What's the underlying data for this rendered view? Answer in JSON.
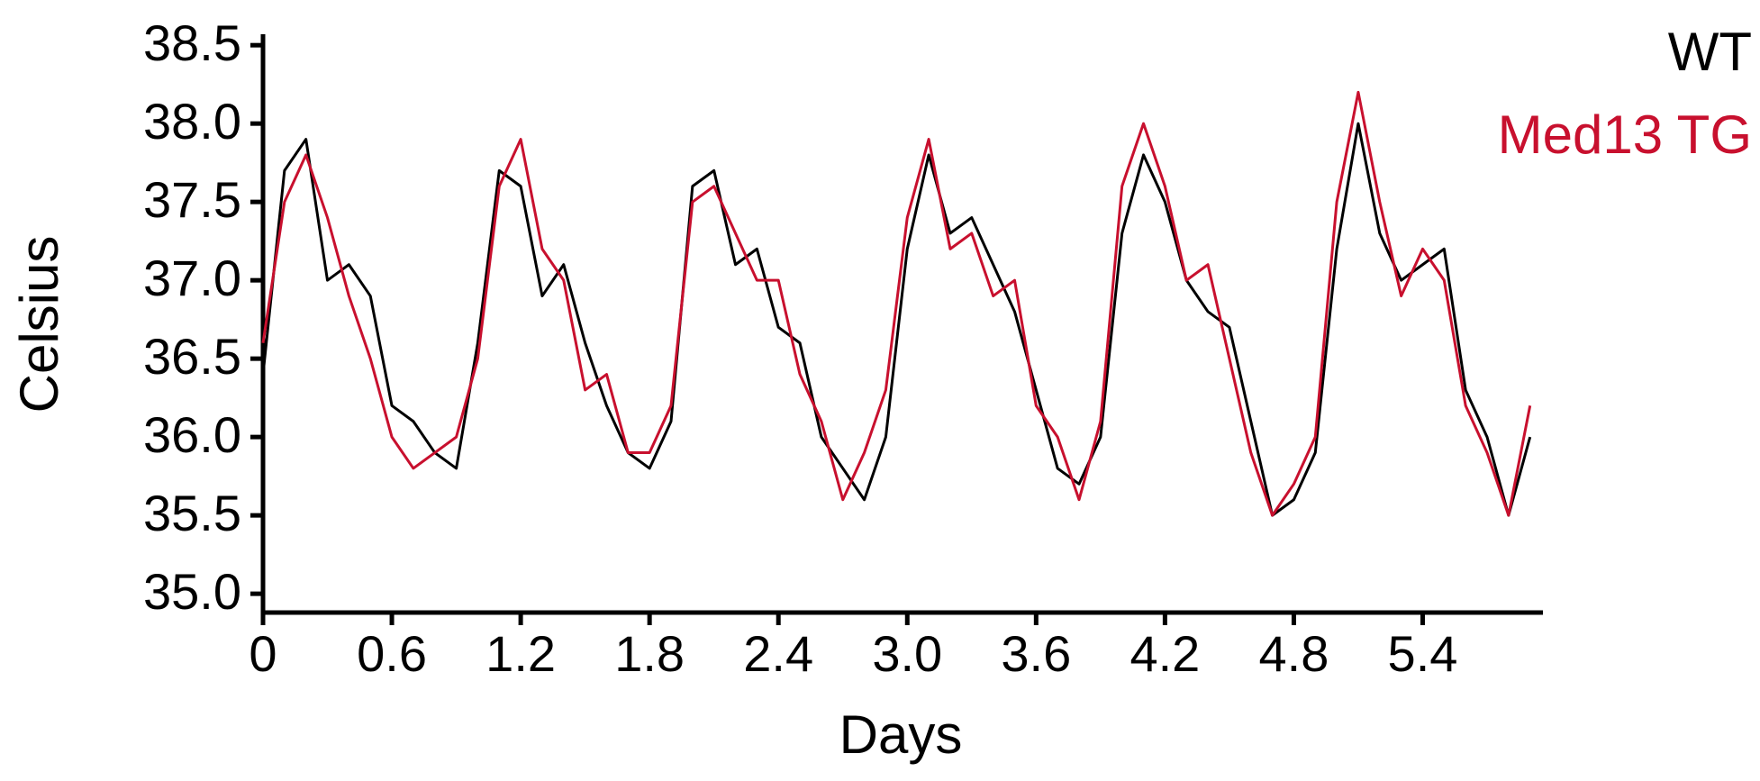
{
  "chart_data": {
    "type": "line",
    "x_label": "Days",
    "y_label": "Celsius",
    "x": [
      0,
      0.1,
      0.2,
      0.3,
      0.4,
      0.5,
      0.6,
      0.7,
      0.8,
      0.9,
      1.0,
      1.1,
      1.2,
      1.3,
      1.4,
      1.5,
      1.6,
      1.7,
      1.8,
      1.9,
      2.0,
      2.1,
      2.2,
      2.3,
      2.4,
      2.5,
      2.6,
      2.7,
      2.8,
      2.9,
      3.0,
      3.1,
      3.2,
      3.3,
      3.4,
      3.5,
      3.6,
      3.7,
      3.8,
      3.9,
      4.0,
      4.1,
      4.2,
      4.3,
      4.4,
      4.5,
      4.6,
      4.7,
      4.8,
      4.9,
      5.0,
      5.1,
      5.2,
      5.3,
      5.4,
      5.5,
      5.6,
      5.7,
      5.8,
      5.9
    ],
    "series": [
      {
        "name": "WT",
        "color": "#000000",
        "values": [
          36.4,
          37.7,
          37.9,
          37.0,
          37.1,
          36.9,
          36.2,
          36.1,
          35.9,
          35.8,
          36.6,
          37.7,
          37.6,
          36.9,
          37.1,
          36.6,
          36.2,
          35.9,
          35.8,
          36.1,
          37.6,
          37.7,
          37.1,
          37.2,
          36.7,
          36.6,
          36.0,
          35.8,
          35.6,
          36.0,
          37.2,
          37.8,
          37.3,
          37.4,
          37.1,
          36.8,
          36.3,
          35.8,
          35.7,
          36.0,
          37.3,
          37.8,
          37.5,
          37.0,
          36.8,
          36.7,
          36.1,
          35.5,
          35.6,
          35.9,
          37.2,
          38.0,
          37.3,
          37.0,
          37.1,
          37.2,
          36.3,
          36.0,
          35.5,
          36.0
        ]
      },
      {
        "name": "Med13 TG",
        "color": "#c8102e",
        "values": [
          36.6,
          37.5,
          37.8,
          37.4,
          36.9,
          36.5,
          36.0,
          35.8,
          35.9,
          36.0,
          36.5,
          37.6,
          37.9,
          37.2,
          37.0,
          36.3,
          36.4,
          35.9,
          35.9,
          36.2,
          37.5,
          37.6,
          37.3,
          37.0,
          37.0,
          36.4,
          36.1,
          35.6,
          35.9,
          36.3,
          37.4,
          37.9,
          37.2,
          37.3,
          36.9,
          37.0,
          36.2,
          36.0,
          35.6,
          36.1,
          37.6,
          38.0,
          37.6,
          37.0,
          37.1,
          36.5,
          35.9,
          35.5,
          35.7,
          36.0,
          37.5,
          38.2,
          37.5,
          36.9,
          37.2,
          37.0,
          36.2,
          35.9,
          35.5,
          36.2
        ]
      }
    ],
    "xlim": [
      0,
      5.96
    ],
    "xticks": [
      0,
      0.6,
      1.2,
      1.8,
      2.4,
      {
        "value": 3,
        "label": "3.0"
      },
      3.6,
      4.2,
      4.8,
      5.4
    ],
    "ylim": [
      34.88,
      38.57
    ],
    "yticks": [
      {
        "value": 35,
        "label": "35.0"
      },
      35.5,
      {
        "value": 36,
        "label": "36.0"
      },
      36.5,
      {
        "value": 37,
        "label": "37.0"
      },
      37.5,
      {
        "value": 38,
        "label": "38.0"
      },
      38.5
    ],
    "grid": false,
    "legend": "top-right"
  }
}
